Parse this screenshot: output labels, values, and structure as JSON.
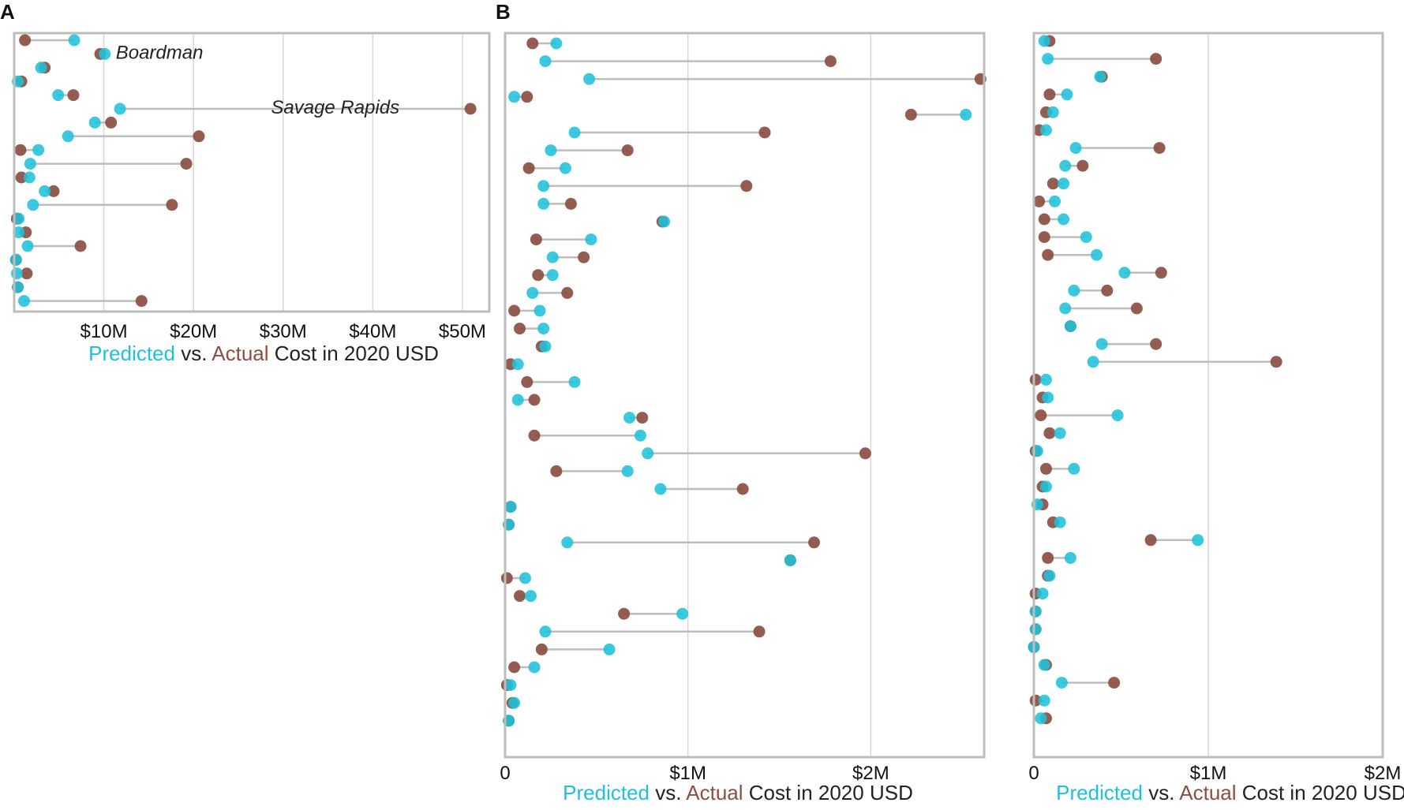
{
  "colors": {
    "predicted": "#1fc1da",
    "actual": "#8b4f42"
  },
  "panel_labels": {
    "a": "A",
    "b": "B"
  },
  "chart_data": [
    {
      "id": "A",
      "type": "dumbbell",
      "xlabel": {
        "predicted": "Predicted",
        "vs": " vs. ",
        "actual": "Actual",
        "rest": " Cost in 2020 USD"
      },
      "xlim": [
        0,
        53
      ],
      "ticks": [
        10,
        20,
        30,
        40,
        50
      ],
      "tick_labels": [
        "$10M",
        "$20M",
        "$30M",
        "$40M",
        "$50M"
      ],
      "units": "USD millions",
      "annotations": [
        {
          "text": "Boardman",
          "row": 1
        },
        {
          "text": "Savage Rapids",
          "row": 5
        }
      ],
      "rows": [
        {
          "predicted": 6.7,
          "actual": 1.2
        },
        {
          "predicted": 10.1,
          "actual": 9.6
        },
        {
          "predicted": 3.0,
          "actual": 3.4
        },
        {
          "predicted": 0.4,
          "actual": 0.8
        },
        {
          "predicted": 4.9,
          "actual": 6.6
        },
        {
          "predicted": 11.8,
          "actual": 50.9
        },
        {
          "predicted": 9.0,
          "actual": 10.8
        },
        {
          "predicted": 6.0,
          "actual": 20.6
        },
        {
          "predicted": 2.7,
          "actual": 0.7
        },
        {
          "predicted": 1.8,
          "actual": 19.2
        },
        {
          "predicted": 1.7,
          "actual": 0.8
        },
        {
          "predicted": 3.4,
          "actual": 4.4
        },
        {
          "predicted": 2.1,
          "actual": 17.6
        },
        {
          "predicted": 0.5,
          "actual": 0.3
        },
        {
          "predicted": 0.5,
          "actual": 1.3
        },
        {
          "predicted": 1.5,
          "actual": 7.4
        },
        {
          "predicted": 0.2,
          "actual": 0.2
        },
        {
          "predicted": 0.3,
          "actual": 1.4
        },
        {
          "predicted": 0.4,
          "actual": 0.4
        },
        {
          "predicted": 1.1,
          "actual": 14.2
        }
      ]
    },
    {
      "id": "B1",
      "type": "dumbbell",
      "xlabel": {
        "predicted": "Predicted",
        "vs": " vs. ",
        "actual": "Actual",
        "rest": " Cost in 2020 USD"
      },
      "xlim": [
        0,
        2.62
      ],
      "ticks": [
        0,
        1,
        2
      ],
      "tick_labels": [
        "0",
        "$1M",
        "$2M"
      ],
      "units": "USD millions",
      "rows": [
        {
          "predicted": 0.28,
          "actual": 0.15
        },
        {
          "predicted": 0.22,
          "actual": 1.78
        },
        {
          "predicted": 0.46,
          "actual": 2.6
        },
        {
          "predicted": 0.05,
          "actual": 0.12
        },
        {
          "predicted": 2.52,
          "actual": 2.22
        },
        {
          "predicted": 0.38,
          "actual": 1.42
        },
        {
          "predicted": 0.25,
          "actual": 0.67
        },
        {
          "predicted": 0.33,
          "actual": 0.13
        },
        {
          "predicted": 0.21,
          "actual": 1.32
        },
        {
          "predicted": 0.21,
          "actual": 0.36
        },
        {
          "predicted": 0.87,
          "actual": 0.86
        },
        {
          "predicted": 0.47,
          "actual": 0.17
        },
        {
          "predicted": 0.26,
          "actual": 0.43
        },
        {
          "predicted": 0.26,
          "actual": 0.18
        },
        {
          "predicted": 0.15,
          "actual": 0.34
        },
        {
          "predicted": 0.19,
          "actual": 0.05
        },
        {
          "predicted": 0.21,
          "actual": 0.08
        },
        {
          "predicted": 0.22,
          "actual": 0.2
        },
        {
          "predicted": 0.07,
          "actual": 0.03
        },
        {
          "predicted": 0.38,
          "actual": 0.12
        },
        {
          "predicted": 0.07,
          "actual": 0.16
        },
        {
          "predicted": 0.68,
          "actual": 0.75
        },
        {
          "predicted": 0.74,
          "actual": 0.16
        },
        {
          "predicted": 0.78,
          "actual": 1.97
        },
        {
          "predicted": 0.67,
          "actual": 0.28
        },
        {
          "predicted": 0.85,
          "actual": 1.3
        },
        {
          "predicted": 0.03,
          "actual": 0.03
        },
        {
          "predicted": 0.02,
          "actual": 0.02
        },
        {
          "predicted": 0.34,
          "actual": 1.69
        },
        {
          "predicted": 1.56,
          "actual": 1.56
        },
        {
          "predicted": 0.11,
          "actual": 0.01
        },
        {
          "predicted": 0.14,
          "actual": 0.08
        },
        {
          "predicted": 0.97,
          "actual": 0.65
        },
        {
          "predicted": 0.22,
          "actual": 1.39
        },
        {
          "predicted": 0.57,
          "actual": 0.2
        },
        {
          "predicted": 0.16,
          "actual": 0.05
        },
        {
          "predicted": 0.03,
          "actual": 0.01
        },
        {
          "predicted": 0.05,
          "actual": 0.04
        },
        {
          "predicted": 0.02,
          "actual": 0.02
        }
      ]
    },
    {
      "id": "B2",
      "type": "dumbbell",
      "xlabel": {
        "predicted": "Predicted",
        "vs": " vs. ",
        "actual": "Actual",
        "rest": " Cost in 2020 USD"
      },
      "xlim": [
        0,
        2
      ],
      "ticks": [
        0,
        1,
        2
      ],
      "tick_labels": [
        "0",
        "$1M",
        "$2M"
      ],
      "units": "USD millions",
      "rows": [
        {
          "predicted": 0.06,
          "actual": 0.09
        },
        {
          "predicted": 0.08,
          "actual": 0.7
        },
        {
          "predicted": 0.38,
          "actual": 0.39
        },
        {
          "predicted": 0.19,
          "actual": 0.09
        },
        {
          "predicted": 0.11,
          "actual": 0.07
        },
        {
          "predicted": 0.07,
          "actual": 0.03
        },
        {
          "predicted": 0.24,
          "actual": 0.72
        },
        {
          "predicted": 0.18,
          "actual": 0.28
        },
        {
          "predicted": 0.17,
          "actual": 0.11
        },
        {
          "predicted": 0.12,
          "actual": 0.03
        },
        {
          "predicted": 0.17,
          "actual": 0.06
        },
        {
          "predicted": 0.3,
          "actual": 0.06
        },
        {
          "predicted": 0.36,
          "actual": 0.08
        },
        {
          "predicted": 0.52,
          "actual": 0.73
        },
        {
          "predicted": 0.23,
          "actual": 0.42
        },
        {
          "predicted": 0.18,
          "actual": 0.59
        },
        {
          "predicted": 0.21,
          "actual": 0.21
        },
        {
          "predicted": 0.39,
          "actual": 0.7
        },
        {
          "predicted": 0.34,
          "actual": 1.39
        },
        {
          "predicted": 0.07,
          "actual": 0.01
        },
        {
          "predicted": 0.08,
          "actual": 0.05
        },
        {
          "predicted": 0.48,
          "actual": 0.04
        },
        {
          "predicted": 0.15,
          "actual": 0.09
        },
        {
          "predicted": 0.02,
          "actual": 0.01
        },
        {
          "predicted": 0.23,
          "actual": 0.07
        },
        {
          "predicted": 0.07,
          "actual": 0.05
        },
        {
          "predicted": 0.02,
          "actual": 0.05
        },
        {
          "predicted": 0.15,
          "actual": 0.11
        },
        {
          "predicted": 0.94,
          "actual": 0.67
        },
        {
          "predicted": 0.21,
          "actual": 0.08
        },
        {
          "predicted": 0.09,
          "actual": 0.08
        },
        {
          "predicted": 0.05,
          "actual": 0.01
        },
        {
          "predicted": 0.01,
          "actual": 0.01
        },
        {
          "predicted": 0.01,
          "actual": 0.01
        },
        {
          "predicted": 0.0,
          "actual": 0.0
        },
        {
          "predicted": 0.06,
          "actual": 0.07
        },
        {
          "predicted": 0.16,
          "actual": 0.46
        },
        {
          "predicted": 0.06,
          "actual": 0.01
        },
        {
          "predicted": 0.04,
          "actual": 0.07
        }
      ]
    }
  ]
}
